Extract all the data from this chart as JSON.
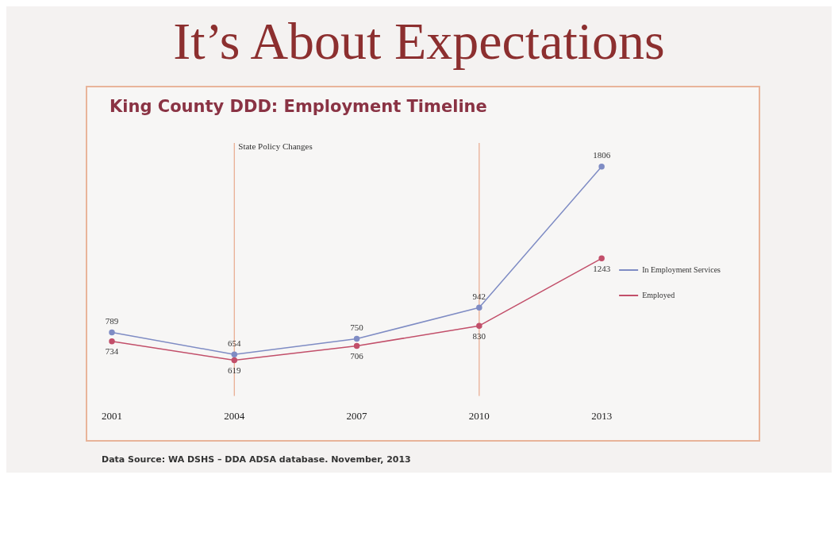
{
  "chart_data": {
    "type": "line",
    "title": "It’s About Expectations",
    "subtitle": "King County DDD: Employment Timeline",
    "categories": [
      "2001",
      "2004",
      "2007",
      "2010",
      "2013"
    ],
    "series": [
      {
        "name": "In Employment Services",
        "color": "#7f8cc4",
        "values": [
          789,
          654,
          750,
          942,
          1806
        ]
      },
      {
        "name": "Employed",
        "color": "#c24f6a",
        "values": [
          734,
          619,
          706,
          830,
          1243
        ]
      }
    ],
    "ref_lines": [
      {
        "axis": "x",
        "value": "2004",
        "label": "State Policy Changes",
        "color": "#e9a98c"
      },
      {
        "axis": "x",
        "value": "2010",
        "color": "#e9a98c"
      }
    ],
    "data_labels": true,
    "marker": "circle",
    "legend": "right",
    "grid": false,
    "annotations": [
      "Data Source: WA DSHS – DDA ADSA database. November, 2013"
    ]
  }
}
